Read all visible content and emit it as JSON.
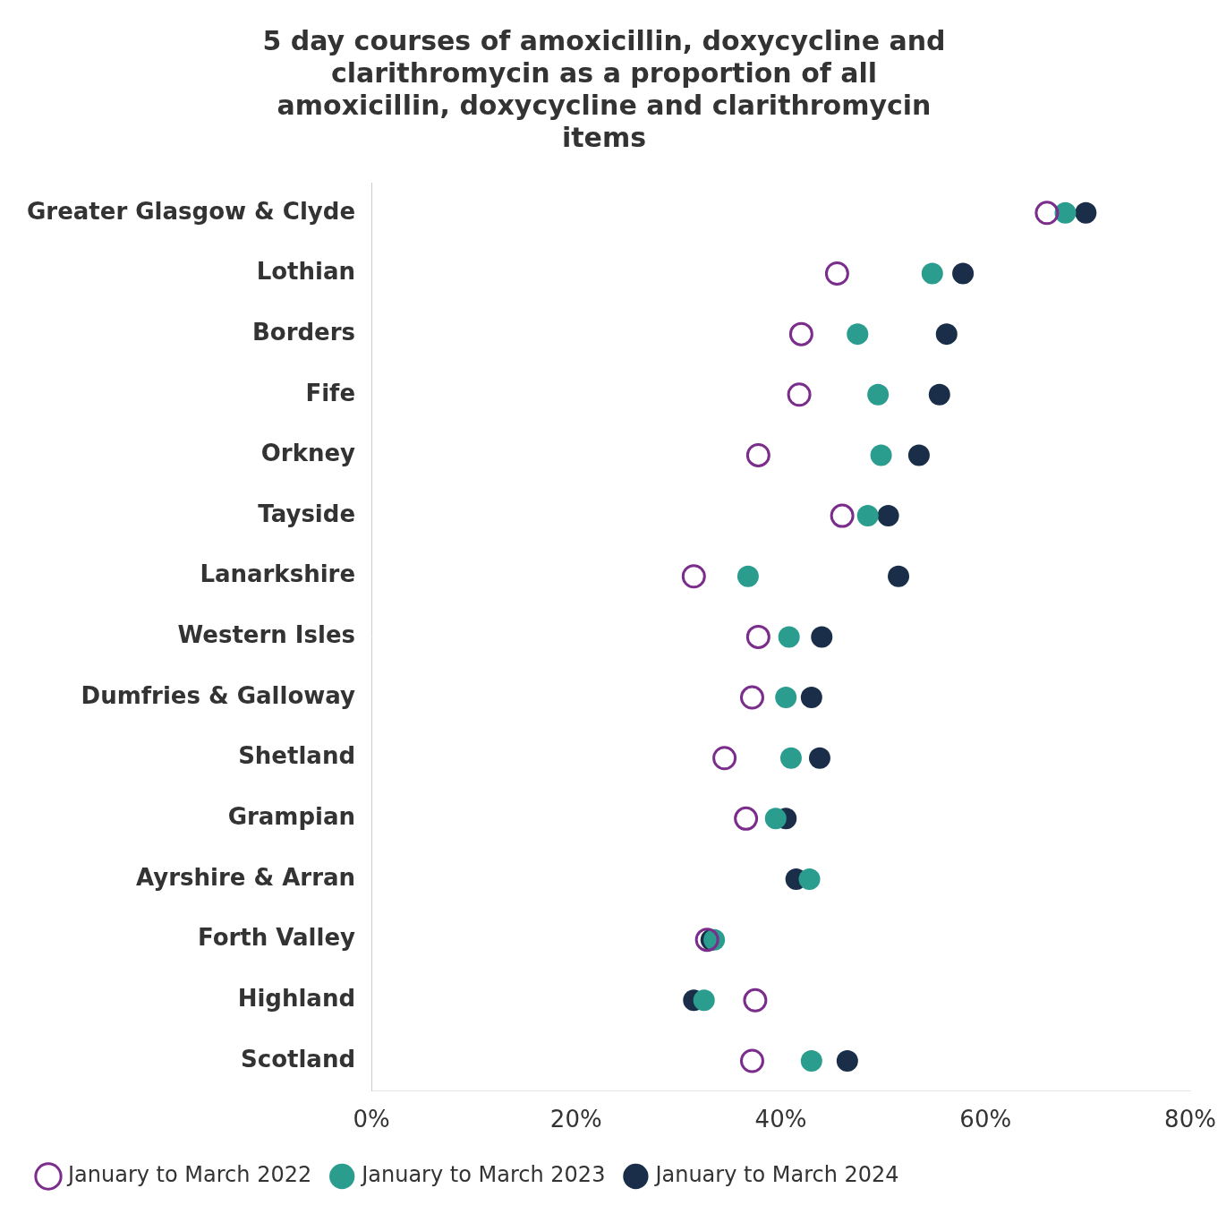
{
  "chart_data": {
    "type": "scatter",
    "title": "5 day courses of amoxicillin, doxycycline and\nclarithromycin as a proportion of all\namoxicillin, doxycycline and clarithromycin\nitems",
    "categories": [
      "Greater Glasgow & Clyde",
      "Lothian",
      "Borders",
      "Fife",
      "Orkney",
      "Tayside",
      "Lanarkshire",
      "Western Isles",
      "Dumfries & Galloway",
      "Shetland",
      "Grampian",
      "Ayrshire & Arran",
      "Forth Valley",
      "Highland",
      "Scotland"
    ],
    "series": [
      {
        "name": "January to March 2022",
        "color": "#7b2d8b",
        "marker": "open_circle",
        "values": [
          0.66,
          0.455,
          0.42,
          0.418,
          0.378,
          0.46,
          0.315,
          0.378,
          0.372,
          0.345,
          0.366,
          null,
          0.328,
          0.375,
          0.372
        ]
      },
      {
        "name": "January to March 2023",
        "color": "#2a9d8f",
        "marker": "circle",
        "values": [
          0.678,
          0.548,
          0.475,
          0.495,
          0.498,
          0.485,
          0.368,
          0.408,
          0.405,
          0.41,
          0.395,
          0.428,
          0.335,
          0.325,
          0.43
        ]
      },
      {
        "name": "January to March 2024",
        "color": "#1a2e4a",
        "marker": "circle",
        "values": [
          0.698,
          0.578,
          0.562,
          0.555,
          0.535,
          0.505,
          0.515,
          0.44,
          0.43,
          0.438,
          0.405,
          0.415,
          0.332,
          0.315,
          0.465
        ]
      }
    ],
    "xlim": [
      0,
      0.8
    ],
    "xticks": [
      {
        "value": 0.0,
        "label": "0%"
      },
      {
        "value": 0.2,
        "label": "20%"
      },
      {
        "value": 0.4,
        "label": "40%"
      },
      {
        "value": 0.6,
        "label": "60%"
      },
      {
        "value": 0.8,
        "label": "80%"
      }
    ],
    "grid": false,
    "legend": "lower left"
  }
}
